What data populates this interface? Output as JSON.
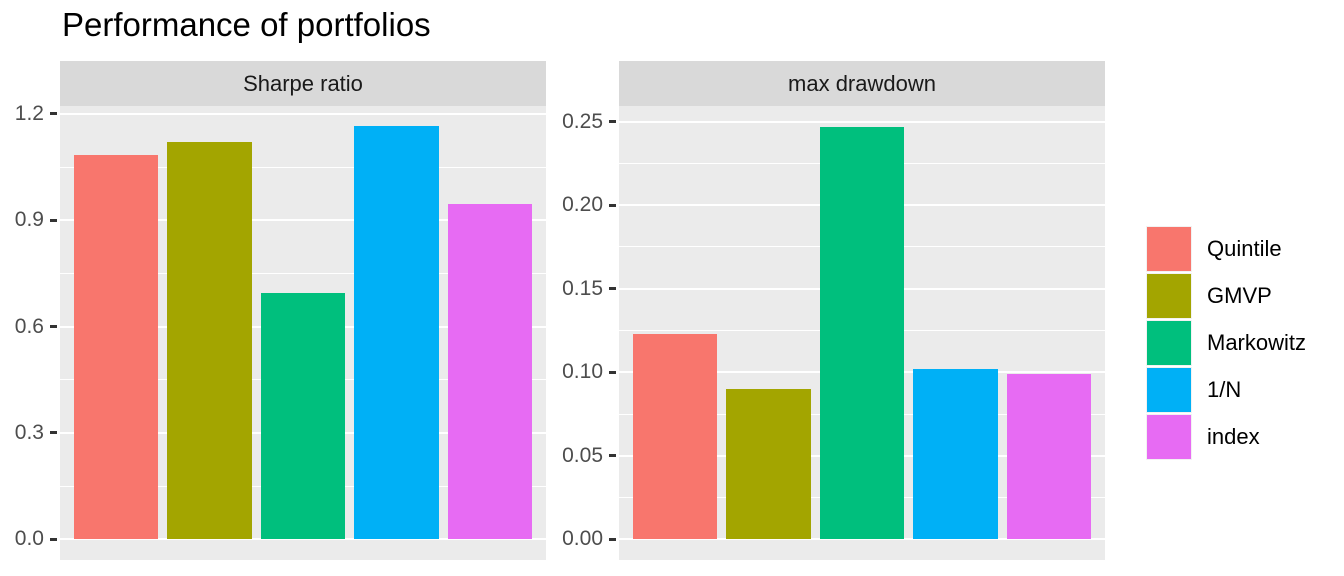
{
  "title": "Performance of portfolios",
  "chart_data": {
    "type": "bar",
    "title": "Performance of portfolios",
    "categories": [
      "Quintile",
      "GMVP",
      "Markowitz",
      "1/N",
      "index"
    ],
    "series_colors": [
      "#F8766D",
      "#A3A500",
      "#00BF7D",
      "#00B0F6",
      "#E76BF3"
    ],
    "facets": [
      {
        "title": "Sharpe ratio",
        "values": [
          1.085,
          1.12,
          0.695,
          1.165,
          0.945
        ],
        "ylim": [
          -0.0582,
          1.2222
        ],
        "yticks": [
          0,
          0.3,
          0.6,
          0.9,
          1.2
        ],
        "ytick_labels": [
          "0.0",
          "0.3",
          "0.6",
          "0.9",
          "1.2"
        ],
        "minor_ticks": [
          0.15,
          0.45,
          0.75,
          1.05
        ]
      },
      {
        "title": "max drawdown",
        "values": [
          0.123,
          0.09,
          0.247,
          0.102,
          0.099
        ],
        "ylim": [
          -0.0124,
          0.2594
        ],
        "yticks": [
          0,
          0.05,
          0.1,
          0.15,
          0.2,
          0.25
        ],
        "ytick_labels": [
          "0.00",
          "0.05",
          "0.10",
          "0.15",
          "0.20",
          "0.25"
        ],
        "minor_ticks": [
          0.025,
          0.075,
          0.125,
          0.175,
          0.225
        ]
      }
    ],
    "legend": {
      "position": "right",
      "title": "",
      "items": [
        {
          "label": "Quintile",
          "color": "#F8766D"
        },
        {
          "label": "GMVP",
          "color": "#A3A500"
        },
        {
          "label": "Markowitz",
          "color": "#00BF7D"
        },
        {
          "label": "1/N",
          "color": "#00B0F6"
        },
        {
          "label": "index",
          "color": "#E76BF3"
        }
      ]
    },
    "grid": true,
    "theme": {
      "background": "#FFFFFF",
      "panel_bg": "#EBEBEB",
      "strip_bg": "#D9D9D9",
      "grid_color": "#FFFFFF",
      "axis_text_color": "#4D4D4D",
      "strip_text_color": "#1A1A1A",
      "tick_mark_color": "#333333",
      "title_color": "#000000"
    }
  }
}
